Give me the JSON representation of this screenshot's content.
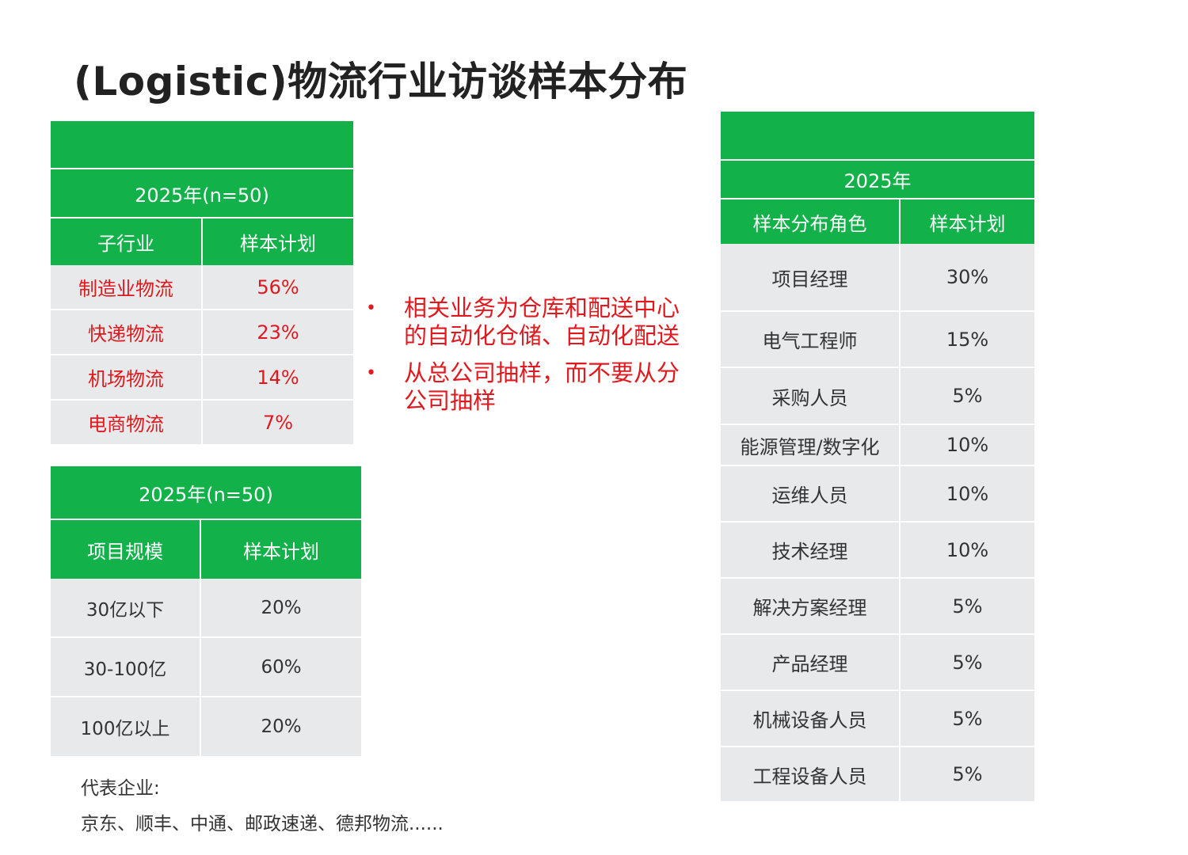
{
  "title": "(Logistic)物流行业访谈样本分布",
  "table_industry": {
    "year_label": "2025年(n=50)",
    "col_headers": [
      "子行业",
      "样本计划"
    ],
    "rows": [
      {
        "name": "制造业物流",
        "value": "56%"
      },
      {
        "name": "快递物流",
        "value": "23%"
      },
      {
        "name": "机场物流",
        "value": "14%"
      },
      {
        "name": "电商物流",
        "value": "7%"
      }
    ]
  },
  "table_scale": {
    "year_label": "2025年(n=50)",
    "col_headers": [
      "项目规模",
      "样本计划"
    ],
    "rows": [
      {
        "name": "30亿以下",
        "value": "20%"
      },
      {
        "name": "30-100亿",
        "value": "60%"
      },
      {
        "name": "100亿以上",
        "value": "20%"
      }
    ]
  },
  "table_role": {
    "year_label": "2025年",
    "col_headers": [
      "样本分布角色",
      "样本计划"
    ],
    "rows": [
      {
        "name": "项目经理",
        "value": "30%"
      },
      {
        "name": "电气工程师",
        "value": "15%"
      },
      {
        "name": "采购人员",
        "value": "5%"
      },
      {
        "name": "能源管理/数字化",
        "value": "10%"
      },
      {
        "name": "运维人员",
        "value": "10%"
      },
      {
        "name": "技术经理",
        "value": "10%"
      },
      {
        "name": "解决方案经理",
        "value": "5%"
      },
      {
        "name": "产品经理",
        "value": "5%"
      },
      {
        "name": "机械设备人员",
        "value": "5%"
      },
      {
        "name": "工程设备人员",
        "value": "5%"
      }
    ]
  },
  "bullets": [
    {
      "marker": "•",
      "text": "相关业务为仓库和配送中心的自动化仓储、自动化配送"
    },
    {
      "marker": "•",
      "text": "从总公司抽样，而不要从分公司抽样"
    }
  ],
  "representative": {
    "label": "代表企业:",
    "companies": "京东、顺丰、中通、邮政速递、德邦物流......"
  },
  "colors": {
    "header_green": "#12b14a",
    "body_gray": "#e8e9eb",
    "emphasis_red": "#e0191e"
  }
}
